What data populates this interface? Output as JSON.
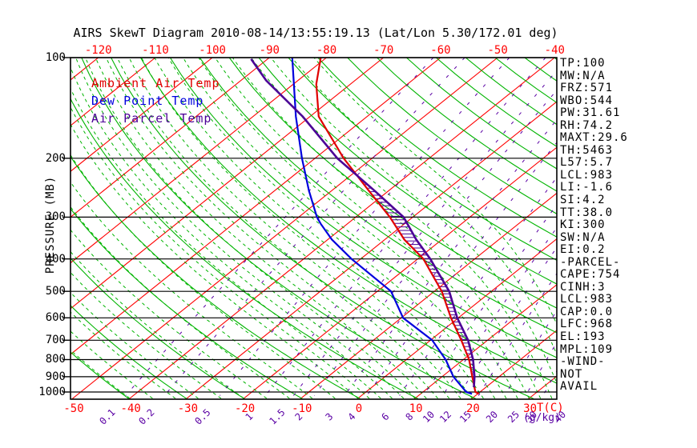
{
  "title": "AIRS SkewT Diagram 2010-08-14/13:55:19.13 (Lat/Lon 5.30/172.01 deg)",
  "legend": [
    {
      "label": "Ambient Air Temp",
      "color": "#e00000"
    },
    {
      "label": "Dew Point Temp",
      "color": "#0000dd"
    },
    {
      "label": "Air Parcel Temp",
      "color": "#4b0096"
    }
  ],
  "side_panel": {
    "lines": [
      "TP:100",
      "MW:N/A",
      "FRZ:571",
      "WBO:544",
      "PW:31.61",
      "RH:74.2",
      "MAXT:29.6",
      "TH:5463",
      "L57:5.7",
      "LCL:983",
      "LI:-1.6",
      "SI:4.2",
      "TT:38.0",
      "KI:300",
      "SW:N/A",
      "EI:0.2",
      "-PARCEL-",
      "CAPE:754",
      "CINH:3",
      "LCL:983",
      "CAP:0.0",
      "LFC:968",
      "EL:193",
      "MPL:109",
      "-WIND-",
      "NOT",
      "AVAIL"
    ]
  },
  "chart_data": {
    "type": "line",
    "subtype": "skewt-log-p",
    "title": "AIRS SkewT Diagram 2010-08-14/13:55:19.13 (Lat/Lon 5.30/172.01 deg)",
    "pressure_axis": {
      "label": "PRESSURE (MB)",
      "ticks": [
        100,
        200,
        300,
        400,
        500,
        600,
        700,
        800,
        900,
        1000
      ],
      "range": [
        100,
        1050
      ],
      "scale": "log"
    },
    "temp_axis": {
      "unit": "T(C)",
      "top_tick_labels": [
        "-120",
        "-110",
        "-100",
        "-90",
        "-80",
        "-70",
        "-60",
        "-50",
        "-40"
      ],
      "bottom_tick_labels": [
        "-50",
        "-40",
        "-30",
        "-20",
        "-10",
        "0",
        "10",
        "20",
        "30"
      ]
    },
    "mixing_ratio_lines": {
      "unit": "(g/kg)",
      "values": [
        0.1,
        0.2,
        0.5,
        1,
        1.5,
        2,
        3,
        4,
        6,
        8,
        10,
        12,
        15,
        20,
        25,
        30,
        40
      ],
      "color": "#5a00a4"
    },
    "isotherms_c": {
      "min": -120,
      "max": 40,
      "step": 10,
      "color": "#ff0000"
    },
    "dry_adiabats_k": {
      "min": 220,
      "max": 450,
      "step": 10,
      "color": "#00b400"
    },
    "moist_adiabats_start_c": [
      -40,
      -36,
      -32,
      -28,
      -24,
      -20,
      -16,
      -12,
      -8,
      -4,
      0,
      2,
      4,
      6,
      8,
      10,
      12,
      14,
      16,
      18,
      20,
      22,
      24,
      26,
      28,
      30,
      32,
      34,
      36,
      38,
      40
    ],
    "series": [
      {
        "name": "Ambient Air Temp",
        "color": "#e00000",
        "width": 2.2,
        "points_p_t": [
          [
            100,
            -81
          ],
          [
            120,
            -76
          ],
          [
            150,
            -68.5
          ],
          [
            200,
            -55
          ],
          [
            250,
            -43.5
          ],
          [
            300,
            -34
          ],
          [
            350,
            -26.6
          ],
          [
            400,
            -19
          ],
          [
            500,
            -8.7
          ],
          [
            600,
            -1.3
          ],
          [
            700,
            5.4
          ],
          [
            800,
            11
          ],
          [
            900,
            15.3
          ],
          [
            1000,
            19.2
          ],
          [
            1013,
            20.2
          ]
        ]
      },
      {
        "name": "Dew Point Temp",
        "color": "#0000dd",
        "width": 2.2,
        "points_p_t": [
          [
            100,
            -86
          ],
          [
            150,
            -72.5
          ],
          [
            200,
            -62.3
          ],
          [
            250,
            -54
          ],
          [
            300,
            -46.8
          ],
          [
            314,
            -44.7
          ],
          [
            350,
            -39.3
          ],
          [
            400,
            -31.6
          ],
          [
            500,
            -17.6
          ],
          [
            600,
            -9.7
          ],
          [
            700,
            0.3
          ],
          [
            800,
            6.9
          ],
          [
            900,
            12
          ],
          [
            1000,
            17.6
          ],
          [
            1013,
            19
          ]
        ]
      },
      {
        "name": "Air Parcel Temp",
        "color": "#4b0096",
        "width": 2.6,
        "points_p_t": [
          [
            101,
            -92.9
          ],
          [
            117,
            -85.6
          ],
          [
            150,
            -71.3
          ],
          [
            200,
            -56.1
          ],
          [
            250,
            -42.5
          ],
          [
            300,
            -31.6
          ],
          [
            350,
            -24.5
          ],
          [
            400,
            -17.8
          ],
          [
            500,
            -7.4
          ],
          [
            600,
            -0.2
          ],
          [
            700,
            6.6
          ],
          [
            800,
            11.7
          ],
          [
            900,
            15.7
          ],
          [
            968,
            17.9
          ]
        ]
      }
    ],
    "cape_hatch": {
      "between": [
        "Ambient Air Temp",
        "Air Parcel Temp"
      ],
      "color": "#4b0096"
    }
  }
}
